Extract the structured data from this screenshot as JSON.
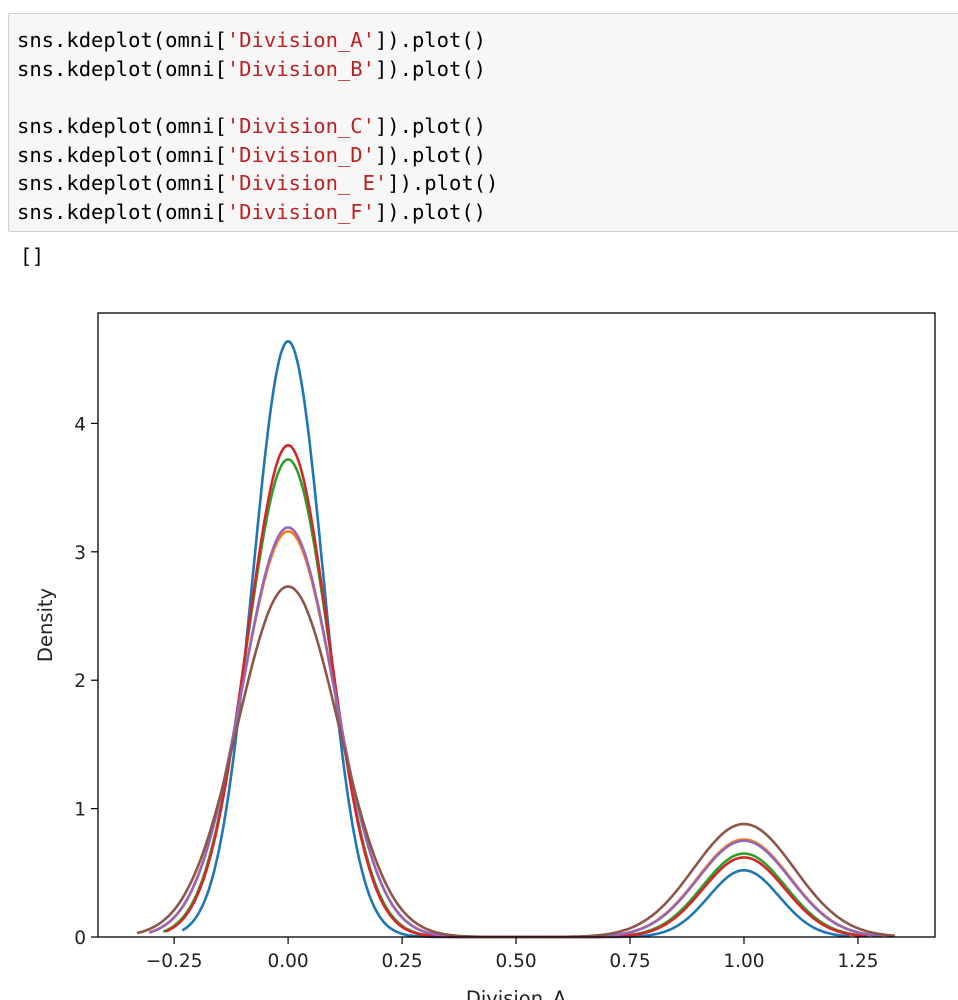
{
  "code_cell": {
    "lines": [
      {
        "pre": "sns.kdeplot(omni[",
        "str": "'Division_A'",
        "post": "]).plot()"
      },
      {
        "pre": "sns.kdeplot(omni[",
        "str": "'Division_B'",
        "post": "]).plot()"
      },
      {
        "pre": "",
        "str": "",
        "post": ""
      },
      {
        "pre": "sns.kdeplot(omni[",
        "str": "'Division_C'",
        "post": "]).plot()"
      },
      {
        "pre": "sns.kdeplot(omni[",
        "str": "'Division_D'",
        "post": "]).plot()"
      },
      {
        "pre": "sns.kdeplot(omni[",
        "str": "'Division_ E'",
        "post": "]).plot()"
      },
      {
        "pre": "sns.kdeplot(omni[",
        "str": "'Division_F'",
        "post": "]).plot()"
      }
    ],
    "string_color": "#ba2121"
  },
  "output_text": "[]",
  "chart_data": {
    "type": "line",
    "title": "",
    "xlabel": "Division_A",
    "ylabel": "Density",
    "xlim": [
      -0.417,
      1.419
    ],
    "ylim": [
      0,
      4.86
    ],
    "xticks": [
      "−0.25",
      "0.00",
      "0.25",
      "0.50",
      "0.75",
      "1.00",
      "1.25"
    ],
    "xtick_values": [
      -0.25,
      0,
      0.25,
      0.5,
      0.75,
      1.0,
      1.25
    ],
    "yticks": [
      "0",
      "1",
      "2",
      "3",
      "4"
    ],
    "ytick_values": [
      0,
      1,
      2,
      3,
      4
    ],
    "grid": false,
    "legend": "none",
    "series": [
      {
        "color": "#1f77b4",
        "peak_at_0": 4.64,
        "peak_at_1": 0.52
      },
      {
        "color": "#ff7f0e",
        "peak_at_0": 3.16,
        "peak_at_1": 0.76
      },
      {
        "color": "#2ca02c",
        "peak_at_0": 3.72,
        "peak_at_1": 0.65
      },
      {
        "color": "#d62728",
        "peak_at_0": 3.83,
        "peak_at_1": 0.62
      },
      {
        "color": "#9467bd",
        "peak_at_0": 3.19,
        "peak_at_1": 0.75
      },
      {
        "color": "#8c564b",
        "peak_at_0": 2.73,
        "peak_at_1": 0.88
      }
    ]
  }
}
